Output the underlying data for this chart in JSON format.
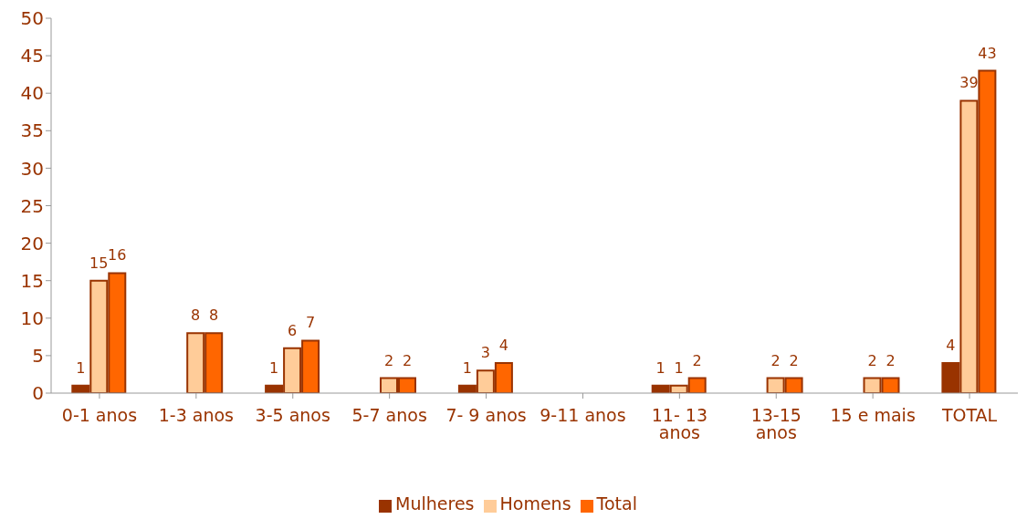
{
  "chart_data": {
    "type": "bar",
    "categories": [
      "0-1 anos",
      "1-3 anos",
      "3-5 anos",
      "5-7 anos",
      "7- 9 anos",
      "9-11 anos",
      "11- 13 anos",
      "13-15 anos",
      "15 e mais",
      "TOTAL"
    ],
    "series": [
      {
        "name": "Mulheres",
        "color": "#993300",
        "values": [
          1,
          null,
          1,
          null,
          1,
          null,
          1,
          null,
          null,
          4
        ]
      },
      {
        "name": "Homens",
        "color": "#ffcc99",
        "values": [
          15,
          8,
          6,
          2,
          3,
          null,
          1,
          2,
          2,
          39
        ]
      },
      {
        "name": "Total",
        "color": "#ff6600",
        "values": [
          16,
          8,
          7,
          2,
          4,
          null,
          2,
          2,
          2,
          43
        ]
      }
    ],
    "ylim": [
      0,
      50
    ],
    "yticks": [
      0,
      5,
      10,
      15,
      20,
      25,
      30,
      35,
      40,
      45,
      50
    ],
    "grid": false,
    "legend": "bottom",
    "data_labels": true
  }
}
